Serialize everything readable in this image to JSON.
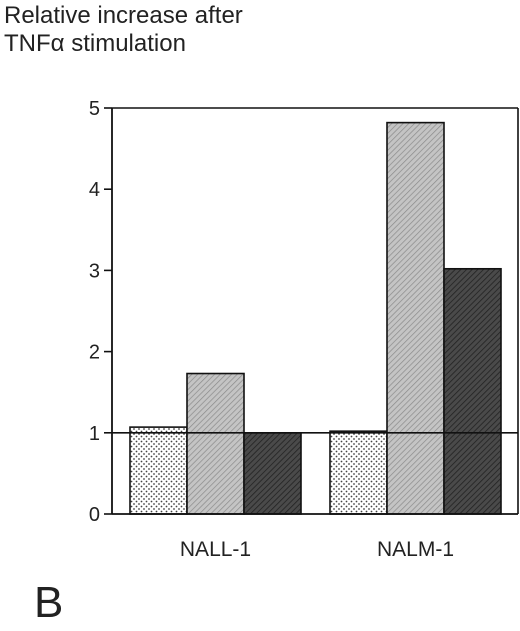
{
  "chart_data": {
    "type": "bar",
    "ylabel_lines": [
      "Relative increase after",
      "TNFα stimulation"
    ],
    "xlabel": "",
    "categories": [
      "NALL-1",
      "NALM-1"
    ],
    "series": [
      {
        "values": [
          1.07,
          1.02
        ],
        "color": "#ffffff",
        "pattern": "dots"
      },
      {
        "values": [
          1.73,
          4.82
        ],
        "color": "#b8b8b8",
        "pattern": "hatch-light"
      },
      {
        "values": [
          1.0,
          3.02
        ],
        "color": "#3a3a3a",
        "pattern": "hatch-dark"
      }
    ],
    "yticks": [
      "0",
      "1",
      "2",
      "3",
      "4",
      "5"
    ],
    "ylim": [
      0,
      5
    ],
    "reference_line": 1,
    "grid": false,
    "legend": "none"
  },
  "panel_label": "B"
}
